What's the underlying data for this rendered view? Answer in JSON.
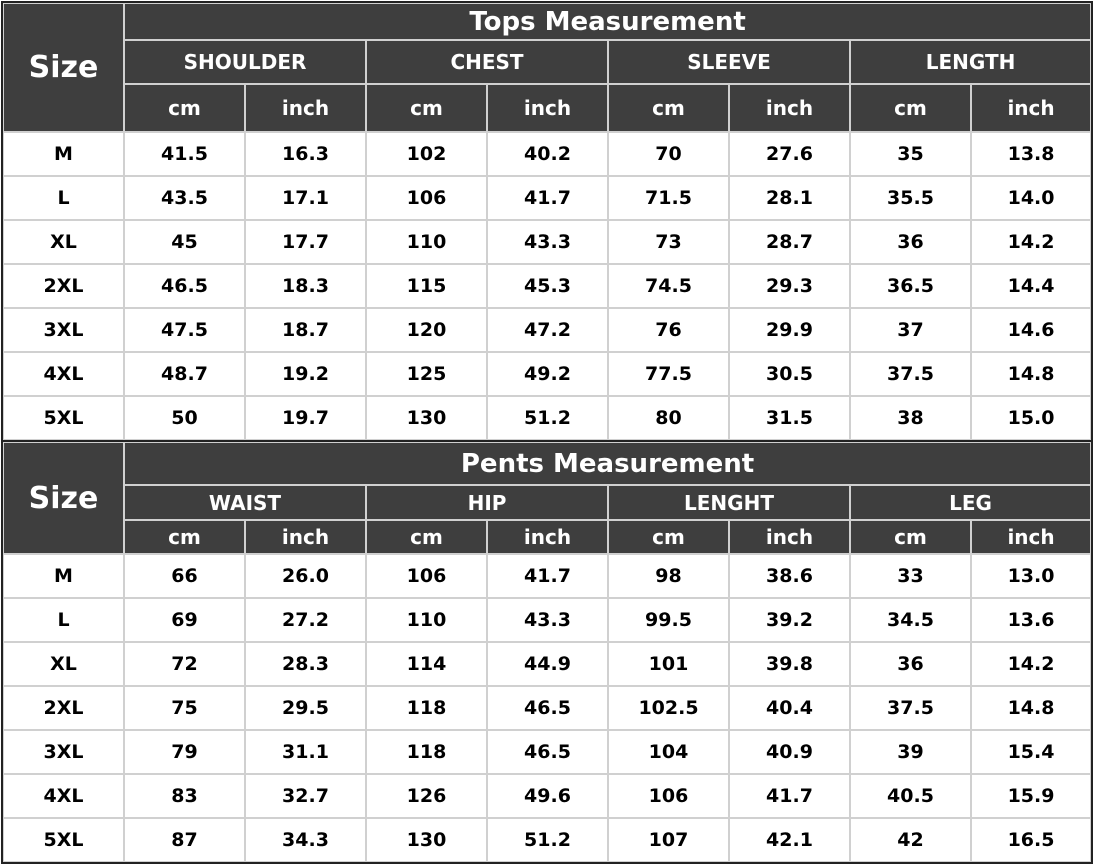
{
  "tops": {
    "size_label": "Size",
    "title": "Tops Measurement",
    "groups": [
      "SHOULDER",
      "CHEST",
      "SLEEVE",
      "LENGTH"
    ],
    "unit_cm": "cm",
    "unit_inch": "inch",
    "rows": [
      [
        "M",
        "41.5",
        "16.3",
        "102",
        "40.2",
        "70",
        "27.6",
        "35",
        "13.8"
      ],
      [
        "L",
        "43.5",
        "17.1",
        "106",
        "41.7",
        "71.5",
        "28.1",
        "35.5",
        "14.0"
      ],
      [
        "XL",
        "45",
        "17.7",
        "110",
        "43.3",
        "73",
        "28.7",
        "36",
        "14.2"
      ],
      [
        "2XL",
        "46.5",
        "18.3",
        "115",
        "45.3",
        "74.5",
        "29.3",
        "36.5",
        "14.4"
      ],
      [
        "3XL",
        "47.5",
        "18.7",
        "120",
        "47.2",
        "76",
        "29.9",
        "37",
        "14.6"
      ],
      [
        "4XL",
        "48.7",
        "19.2",
        "125",
        "49.2",
        "77.5",
        "30.5",
        "37.5",
        "14.8"
      ],
      [
        "5XL",
        "50",
        "19.7",
        "130",
        "51.2",
        "80",
        "31.5",
        "38",
        "15.0"
      ]
    ]
  },
  "pants": {
    "size_label": "Size",
    "title": "Pents Measurement",
    "groups": [
      "WAIST",
      "HIP",
      "LENGHT",
      "LEG"
    ],
    "unit_cm": "cm",
    "unit_inch": "inch",
    "rows": [
      [
        "M",
        "66",
        "26.0",
        "106",
        "41.7",
        "98",
        "38.6",
        "33",
        "13.0"
      ],
      [
        "L",
        "69",
        "27.2",
        "110",
        "43.3",
        "99.5",
        "39.2",
        "34.5",
        "13.6"
      ],
      [
        "XL",
        "72",
        "28.3",
        "114",
        "44.9",
        "101",
        "39.8",
        "36",
        "14.2"
      ],
      [
        "2XL",
        "75",
        "29.5",
        "118",
        "46.5",
        "102.5",
        "40.4",
        "37.5",
        "14.8"
      ],
      [
        "3XL",
        "79",
        "31.1",
        "118",
        "46.5",
        "104",
        "40.9",
        "39",
        "15.4"
      ],
      [
        "4XL",
        "83",
        "32.7",
        "126",
        "49.6",
        "106",
        "41.7",
        "40.5",
        "15.9"
      ],
      [
        "5XL",
        "87",
        "34.3",
        "130",
        "51.2",
        "107",
        "42.1",
        "42",
        "16.5"
      ]
    ]
  },
  "colors": {
    "header_bg": "#3e3e3e",
    "header_text": "#ffffff",
    "grid_line": "#d0d0d0"
  }
}
